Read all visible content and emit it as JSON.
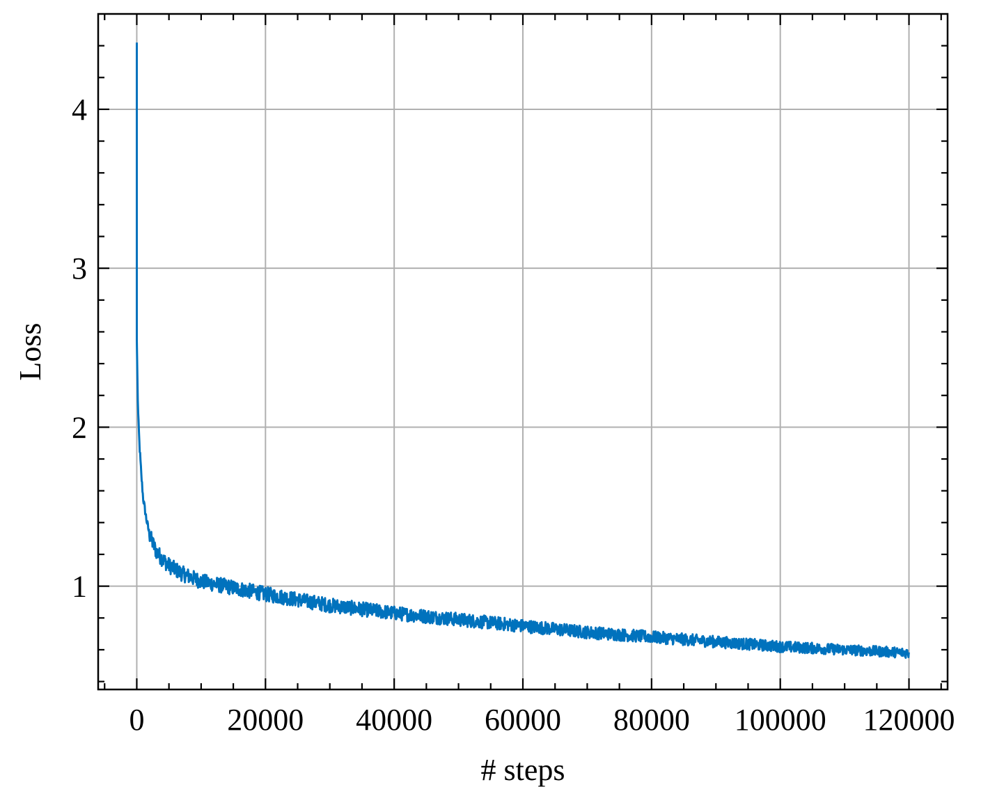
{
  "chart_data": {
    "type": "line",
    "title": "",
    "xlabel": "# steps",
    "ylabel": "Loss",
    "xlim": [
      -6000,
      126000
    ],
    "ylim": [
      0.35,
      4.6
    ],
    "grid": true,
    "legend": "none",
    "x_ticks": [
      0,
      20000,
      40000,
      60000,
      80000,
      100000,
      120000
    ],
    "x_tick_labels": [
      "0",
      "20000",
      "40000",
      "60000",
      "80000",
      "100000",
      "120000"
    ],
    "y_ticks": [
      1,
      2,
      3,
      4
    ],
    "y_tick_labels": [
      "1",
      "2",
      "3",
      "4"
    ],
    "series": [
      {
        "color": "#0072bd",
        "x": [
          0,
          50,
          100,
          200,
          400,
          700,
          1000,
          1500,
          2000,
          3000,
          4000,
          5000,
          7000,
          10000,
          15000,
          20000,
          30000,
          40000,
          50000,
          60000,
          70000,
          80000,
          90000,
          100000,
          110000,
          120000
        ],
        "y": [
          4.42,
          2.55,
          2.3,
          2.1,
          1.9,
          1.7,
          1.55,
          1.42,
          1.32,
          1.22,
          1.17,
          1.13,
          1.08,
          1.03,
          0.99,
          0.95,
          0.88,
          0.83,
          0.79,
          0.75,
          0.71,
          0.68,
          0.65,
          0.62,
          0.6,
          0.58
        ],
        "noise_band": 0.05
      }
    ]
  }
}
